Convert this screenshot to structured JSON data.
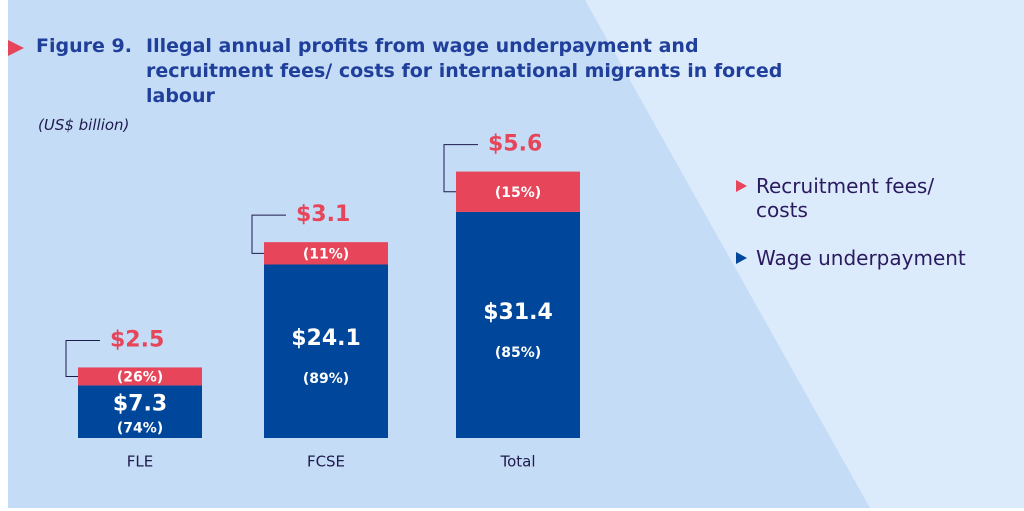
{
  "chart_data": {
    "type": "stacked_bar",
    "figure_label": "Figure 9.",
    "title": "Illegal annual profits from wage underpayment and recruitment fees/ costs for international migrants in forced labour",
    "subtitle": "(US$ billion)",
    "categories": [
      "FLE",
      "FCSE",
      "Total"
    ],
    "series": [
      {
        "name": "Wage underpayment",
        "color": "#00469a",
        "values": [
          7.3,
          24.1,
          31.4
        ],
        "value_labels": [
          "$7.3",
          "$24.1",
          "$31.4"
        ],
        "percent_labels": [
          "(74%)",
          "(89%)",
          "(85%)"
        ]
      },
      {
        "name": "Recruitment fees/ costs",
        "color": "#e6455a",
        "values": [
          2.5,
          3.1,
          5.6
        ],
        "value_labels": [
          "$2.5",
          "$3.1",
          "$5.6"
        ],
        "percent_labels": [
          "(26%)",
          "(11%)",
          "(15%)"
        ]
      }
    ]
  }
}
